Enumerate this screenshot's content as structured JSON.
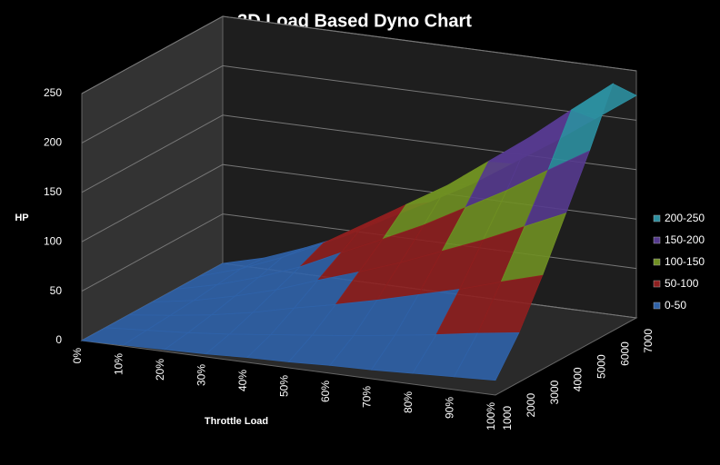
{
  "chart_data": {
    "type": "surface3d",
    "title": "3D Load Based Dyno Chart",
    "x_label": "Throttle Load",
    "z_label": "HP",
    "categories": [
      "0%",
      "10%",
      "20%",
      "30%",
      "40%",
      "50%",
      "60%",
      "70%",
      "80%",
      "90%",
      "100%"
    ],
    "series": [
      {
        "name": "1000",
        "values": [
          0,
          1,
          2,
          3,
          5,
          6,
          8,
          9,
          11,
          13,
          15
        ]
      },
      {
        "name": "2000",
        "values": [
          0,
          3,
          6,
          10,
          15,
          20,
          25,
          31,
          37,
          44,
          50
        ]
      },
      {
        "name": "3000",
        "values": [
          0,
          5,
          11,
          19,
          29,
          38,
          48,
          59,
          70,
          83,
          95
        ]
      },
      {
        "name": "4000",
        "values": [
          0,
          7,
          17,
          29,
          44,
          58,
          73,
          90,
          107,
          126,
          145
        ]
      },
      {
        "name": "5000",
        "values": [
          0,
          10,
          23,
          39,
          59,
          78,
          98,
          121,
          144,
          170,
          195
        ]
      },
      {
        "name": "6000",
        "values": [
          0,
          13,
          30,
          50,
          75,
          100,
          125,
          155,
          185,
          218,
          250
        ]
      },
      {
        "name": "7000",
        "values": [
          0,
          11,
          27,
          45,
          68,
          90,
          113,
          140,
          167,
          196,
          225
        ]
      }
    ],
    "zlim": [
      0,
      250
    ],
    "zticks": [
      0,
      50,
      100,
      150,
      200,
      250
    ],
    "grid": true,
    "legend": [
      {
        "name": "200-250",
        "color": "#2c8fa0",
        "range": [
          200,
          250
        ]
      },
      {
        "name": "150-200",
        "color": "#553a8e",
        "range": [
          150,
          200
        ]
      },
      {
        "name": "100-150",
        "color": "#6f8f22",
        "range": [
          100,
          150
        ]
      },
      {
        "name": "50-100",
        "color": "#8e1f1f",
        "range": [
          50,
          100
        ]
      },
      {
        "name": "0-50",
        "color": "#2f62a8",
        "range": [
          0,
          50
        ]
      }
    ]
  }
}
